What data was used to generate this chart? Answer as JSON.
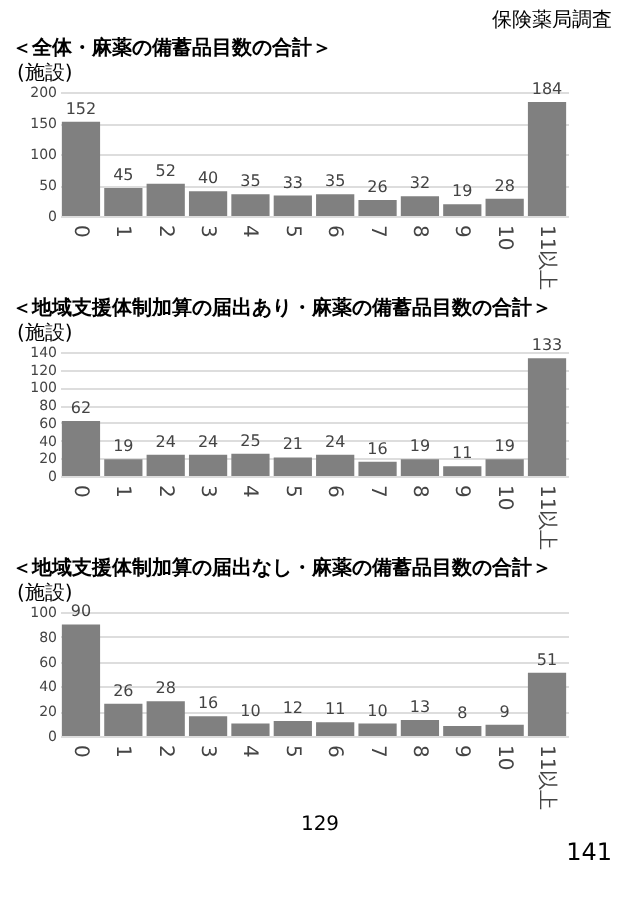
{
  "chart_data": [
    {
      "type": "bar",
      "title": "＜全体・麻薬の備蓄品目数の合計＞",
      "ylabel": "(施設)",
      "annotations": [
        "保険薬局調査"
      ],
      "categories": [
        "0",
        "1",
        "2",
        "3",
        "4",
        "5",
        "6",
        "7",
        "8",
        "9",
        "10",
        "11以上"
      ],
      "values": [
        152,
        45,
        52,
        40,
        35,
        33,
        35,
        26,
        32,
        19,
        28,
        184
      ],
      "color": "#808080",
      "ylim": [
        0,
        200
      ],
      "yticks": [
        0,
        50,
        100,
        150,
        200
      ],
      "grid": "y",
      "data_labels": true
    },
    {
      "type": "bar",
      "title": "＜地域支援体制加算の届出あり・麻薬の備蓄品目数の合計＞",
      "ylabel": "(施設)",
      "categories": [
        "0",
        "1",
        "2",
        "3",
        "4",
        "5",
        "6",
        "7",
        "8",
        "9",
        "10",
        "11以上"
      ],
      "values": [
        62,
        19,
        24,
        24,
        25,
        21,
        24,
        16,
        19,
        11,
        19,
        133
      ],
      "color": "#808080",
      "ylim": [
        0,
        140
      ],
      "yticks": [
        0,
        20,
        40,
        60,
        80,
        100,
        120,
        140
      ],
      "grid": "y",
      "data_labels": true
    },
    {
      "type": "bar",
      "title": "＜地域支援体制加算の届出なし・麻薬の備蓄品目数の合計＞",
      "ylabel": "(施設)",
      "annotations": [
        "129",
        "141"
      ],
      "categories": [
        "0",
        "1",
        "2",
        "3",
        "4",
        "5",
        "6",
        "7",
        "8",
        "9",
        "10",
        "11以上"
      ],
      "values": [
        90,
        26,
        28,
        16,
        10,
        12,
        11,
        10,
        13,
        8,
        9,
        51
      ],
      "color": "#808080",
      "ylim": [
        0,
        100
      ],
      "yticks": [
        0,
        20,
        40,
        60,
        80,
        100
      ],
      "grid": "y",
      "data_labels": true
    }
  ]
}
